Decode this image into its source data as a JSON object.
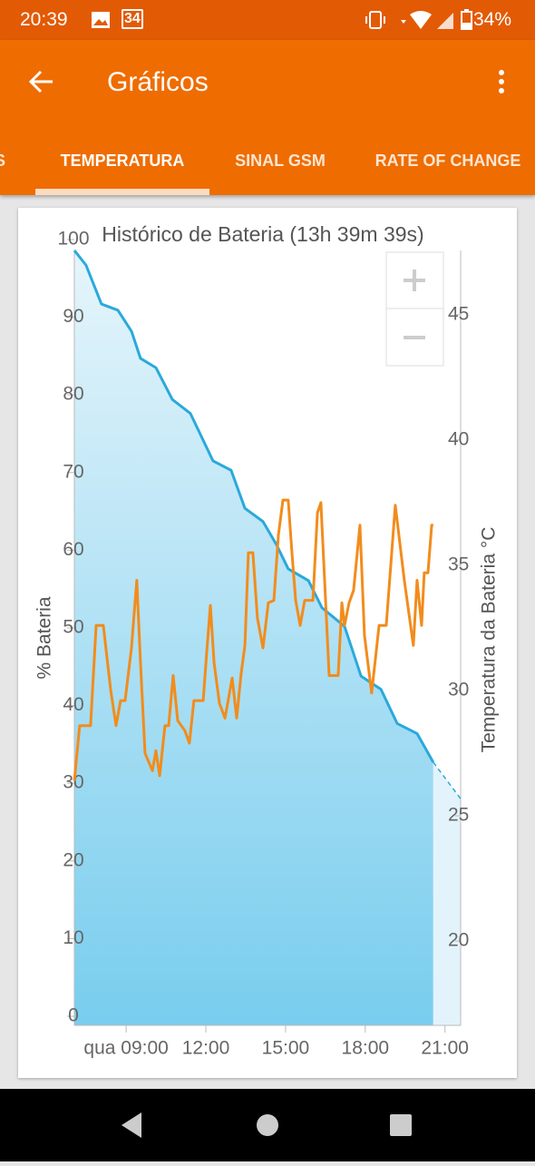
{
  "status_bar": {
    "time": "20:39",
    "calendar_day": "34",
    "battery": "34%"
  },
  "app_bar": {
    "title": "Gráficos"
  },
  "tabs": [
    "S",
    "TEMPERATURA",
    "SINAL GSM",
    "RATE OF CHANGE"
  ],
  "selected_tab": 1,
  "chart_data": {
    "type": "line",
    "title": "Histórico de Bateria (13h 39m 39s)",
    "y_label": "% Bateria",
    "y2_label": "Temperatura da Bateria °C",
    "xlim": [
      7.05,
      21.59
    ],
    "xticks": [
      {
        "value": 9,
        "label": "qua 09:00"
      },
      {
        "value": 12,
        "label": "12:00"
      },
      {
        "value": 15,
        "label": "15:00"
      },
      {
        "value": 18,
        "label": "18:00"
      },
      {
        "value": 21,
        "label": "21:00"
      }
    ],
    "ylim": [
      0,
      100
    ],
    "yticks": [
      0,
      10,
      20,
      30,
      40,
      50,
      60,
      70,
      80,
      90,
      100
    ],
    "y2lim": [
      17,
      48
    ],
    "y2ticks": [
      20,
      25,
      30,
      35,
      40,
      45
    ],
    "series": [
      {
        "axis": "y",
        "color": "#2aa9dc",
        "area": true,
        "x": [
          7.05,
          7.49,
          8.07,
          8.69,
          9.2,
          9.54,
          10.12,
          10.74,
          11.42,
          12.27,
          12.95,
          13.47,
          14.15,
          14.66,
          15.1,
          15.86,
          16.37,
          17.22,
          17.84,
          18.59,
          19.2,
          19.95,
          20.56
        ],
        "values": [
          98.6,
          96.7,
          91.7,
          90.9,
          88.2,
          84.7,
          83.5,
          79.4,
          77.6,
          71.5,
          70.3,
          65.4,
          63.7,
          60.7,
          57.6,
          56.1,
          52.6,
          50.2,
          43.8,
          42.1,
          37.7,
          36.4,
          32.7
        ]
      },
      {
        "axis": "y",
        "color": "#2aa9dc",
        "area": true,
        "dashed": true,
        "x": [
          20.56,
          21.59
        ],
        "values": [
          32.7,
          28.0
        ]
      },
      {
        "axis": "y2",
        "color": "#f28c1c",
        "x": [
          7.05,
          7.25,
          7.66,
          7.87,
          8.14,
          8.42,
          8.62,
          8.79,
          8.96,
          9.2,
          9.34,
          9.4,
          9.54,
          9.71,
          9.99,
          10.12,
          10.26,
          10.46,
          10.6,
          10.77,
          10.94,
          11.21,
          11.38,
          11.55,
          11.9,
          12.03,
          12.17,
          12.31,
          12.51,
          12.72,
          12.99,
          13.16,
          13.33,
          13.47,
          13.6,
          13.77,
          13.94,
          14.15,
          14.35,
          14.56,
          14.73,
          14.9,
          15.1,
          15.24,
          15.38,
          15.55,
          15.72,
          16.03,
          16.2,
          16.33,
          16.47,
          16.64,
          16.98,
          17.12,
          17.22,
          17.39,
          17.56,
          17.8,
          17.97,
          18.24,
          18.52,
          18.79,
          19.13,
          19.47,
          19.81,
          19.95,
          20.12,
          20.22,
          20.36,
          20.5,
          20.56
        ],
        "values": [
          26.4,
          28.6,
          28.6,
          32.6,
          32.6,
          30.0,
          28.6,
          29.6,
          29.6,
          31.7,
          33.6,
          34.4,
          31.1,
          27.5,
          26.8,
          27.6,
          26.6,
          28.6,
          28.6,
          30.6,
          28.8,
          28.4,
          27.9,
          29.6,
          29.6,
          31.5,
          33.4,
          31.1,
          29.5,
          28.9,
          30.5,
          28.9,
          30.7,
          31.8,
          35.5,
          35.5,
          32.9,
          31.7,
          33.5,
          33.6,
          36.2,
          37.6,
          37.6,
          35.5,
          33.6,
          32.6,
          33.6,
          33.6,
          37.1,
          37.5,
          34.4,
          30.6,
          30.6,
          33.5,
          32.6,
          33.5,
          34.0,
          36.6,
          32.2,
          29.9,
          32.6,
          32.6,
          37.4,
          34.4,
          31.8,
          34.4,
          32.6,
          34.7,
          34.7,
          36.6,
          36.6
        ]
      }
    ]
  }
}
